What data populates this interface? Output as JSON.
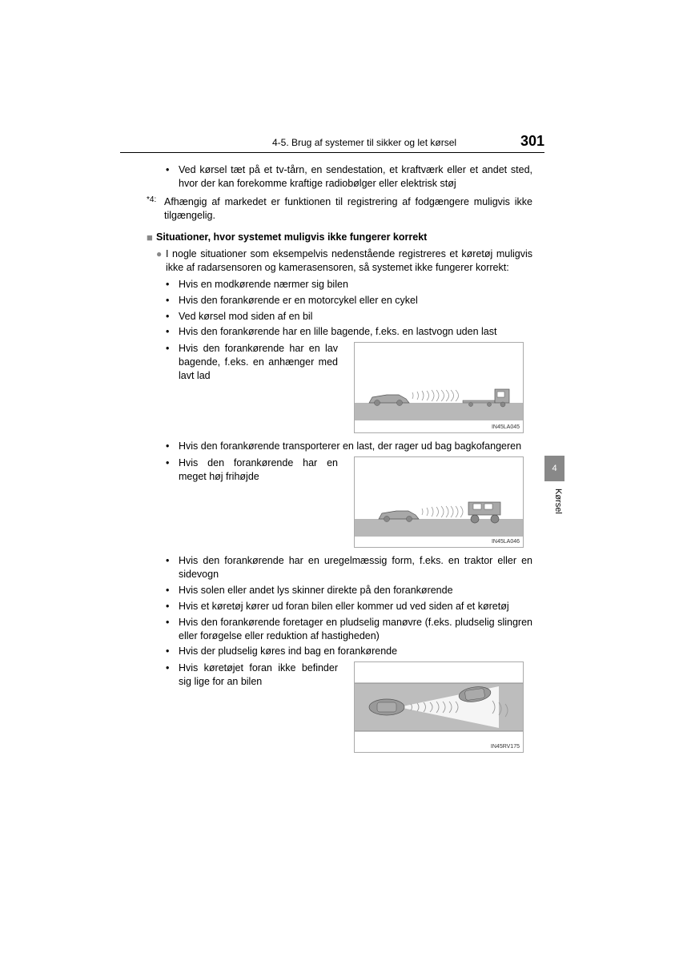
{
  "page": {
    "section_header": "4-5. Brug af systemer til sikker og let kørsel",
    "page_number": "301",
    "side_tab_number": "4",
    "side_tab_label": "Kørsel"
  },
  "top_bullet": "Ved kørsel tæt på et tv-tårn, en sendestation, et kraftværk eller et andet sted, hvor der kan forekomme kraftige radiobølger eller elektrisk støj",
  "footnote": {
    "marker": "*4:",
    "text": "Afhængig af markedet er funktionen til registrering af fodgængere muligvis ikke tilgængelig."
  },
  "heading": "Situationer, hvor systemet muligvis ikke fungerer korrekt",
  "intro": "I nogle situationer som eksempelvis nedenstående registreres et køretøj muligvis ikke af radarsensoren og kamerasensoren, så systemet ikke fungerer korrekt:",
  "bullets1": [
    "Hvis en modkørende nærmer sig bilen",
    "Hvis den forankørende er en motorcykel eller en cykel",
    "Ved kørsel mod siden af en bil",
    "Hvis den forankørende har en lille bagende, f.eks. en lastvogn uden last"
  ],
  "fig1": {
    "text": "Hvis den forankørende har en lav bagende, f.eks. en anhænger med lavt lad",
    "label": "IN45LA045"
  },
  "mid_bullet": "Hvis den forankørende transporterer en last, der rager ud bag bagkofangeren",
  "fig2": {
    "text": "Hvis den forankørende har en meget høj frihøjde",
    "label": "IN45LA046"
  },
  "bullets2": [
    "Hvis den forankørende har en uregelmæssig form, f.eks. en traktor eller en sidevogn",
    "Hvis solen eller andet lys skinner direkte på den forankørende",
    "Hvis et køretøj kører ud foran bilen eller kommer ud ved siden af et køretøj",
    "Hvis den forankørende foretager en pludselig manøvre (f.eks. pludselig slingren eller forøgelse eller reduktion af hastigheden)",
    "Hvis der pludselig køres ind bag en forankørende"
  ],
  "fig3": {
    "text": "Hvis køretøjet foran ikke befinder sig lige for an bilen",
    "label": "IN45RV175"
  },
  "figstyle": {
    "road_fill": "#b8b8b8",
    "car_fill": "#a8a8a8",
    "car_stroke": "#555",
    "wave_stroke": "#999"
  }
}
